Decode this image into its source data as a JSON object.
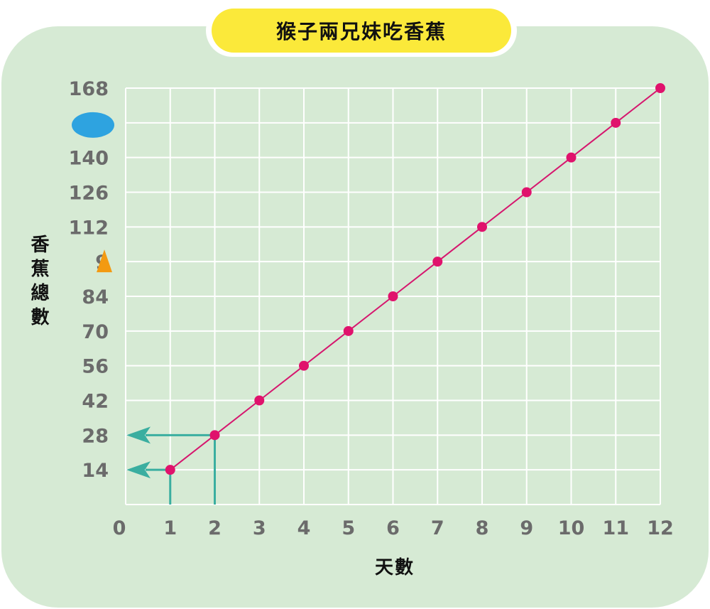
{
  "title": "猴子兩兄妹吃香蕉",
  "ylabel": "香蕉總數",
  "xlabel": "天數",
  "colors": {
    "panel": "#d6ead4",
    "title_bg": "#fbe93a",
    "line": "#d6166e",
    "point": "#e0126c",
    "arrow": "#3aaea0",
    "grid": "#ffffff",
    "tick_text": "#6b6b6b",
    "blue_oval": "#2ea3e0",
    "orange_triangle": "#f39a12"
  },
  "y_tick_labels": [
    "14",
    "28",
    "42",
    "56",
    "70",
    "84",
    "9",
    "112",
    "126",
    "140",
    "",
    "168"
  ],
  "chart_data": {
    "type": "line",
    "title": "猴子兩兄妹吃香蕉",
    "xlabel": "天數",
    "ylabel": "香蕉總數",
    "x": [
      1,
      2,
      3,
      4,
      5,
      6,
      7,
      8,
      9,
      10,
      11,
      12
    ],
    "series": [
      {
        "values": [
          14,
          28,
          42,
          56,
          70,
          84,
          98,
          112,
          126,
          140,
          154,
          168
        ]
      }
    ],
    "x_ticks": [
      "0",
      "1",
      "2",
      "3",
      "4",
      "5",
      "6",
      "7",
      "8",
      "9",
      "10",
      "11",
      "12"
    ],
    "y_ticks": [
      14,
      28,
      42,
      56,
      70,
      84,
      98,
      112,
      126,
      140,
      154,
      168
    ],
    "xlim": [
      0,
      12
    ],
    "ylim": [
      0,
      168
    ],
    "grid": true,
    "annotations": [
      {
        "type": "arrow",
        "from_x": 1,
        "to_y": 14
      },
      {
        "type": "arrow",
        "from_x": 2,
        "to_y": 28
      },
      {
        "type": "hidden-label",
        "shape": "blue-oval",
        "y": 154
      },
      {
        "type": "hidden-label",
        "shape": "orange-triangle",
        "y": 98
      }
    ]
  }
}
